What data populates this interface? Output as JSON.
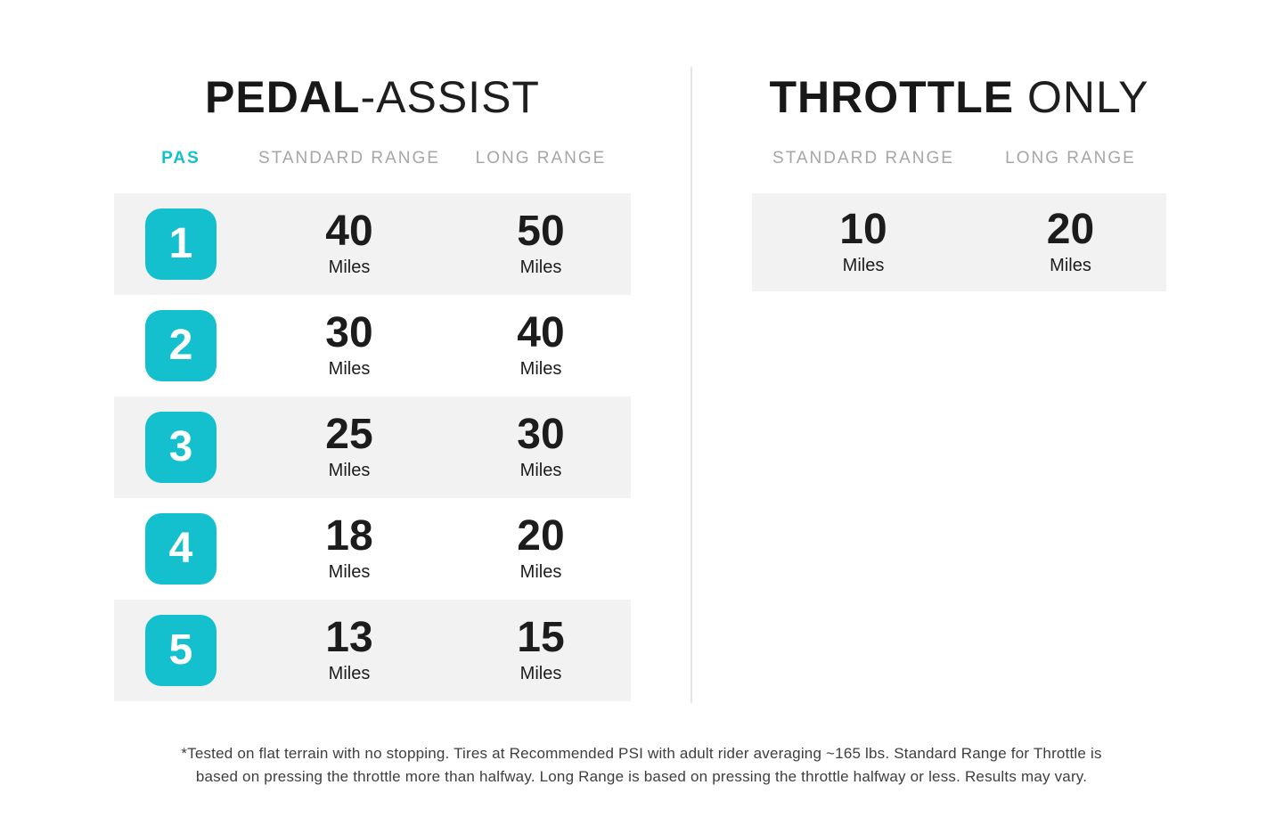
{
  "colors": {
    "accent_teal": "#14c0cd",
    "row_gray": "#f2f2f2",
    "header_gray": "#a6a6a6",
    "text_dark": "#1c1c1c",
    "divider_gray": "#e4e4e4",
    "footnote_gray": "#3e3e3e"
  },
  "pedal_assist": {
    "title_bold": "PEDAL",
    "title_light": "-ASSIST",
    "columns": [
      "PAS",
      "STANDARD RANGE",
      "LONG RANGE"
    ],
    "unit": "Miles",
    "rows": [
      {
        "pas": "1",
        "standard": "40",
        "long": "50"
      },
      {
        "pas": "2",
        "standard": "30",
        "long": "40"
      },
      {
        "pas": "3",
        "standard": "25",
        "long": "30"
      },
      {
        "pas": "4",
        "standard": "18",
        "long": "20"
      },
      {
        "pas": "5",
        "standard": "13",
        "long": "15"
      }
    ]
  },
  "throttle_only": {
    "title_bold": "THROTTLE",
    "title_light": " ONLY",
    "columns": [
      "STANDARD RANGE",
      "LONG RANGE"
    ],
    "unit": "Miles",
    "rows": [
      {
        "standard": "10",
        "long": "20"
      }
    ]
  },
  "footnote": {
    "line1": "*Tested on flat terrain with no stopping. Tires at Recommended PSI with adult rider averaging ~165 lbs. Standard Range for Throttle is",
    "line2": "based on pressing the throttle more than halfway. Long Range is based on pressing the throttle halfway or less. Results may vary."
  },
  "chart_data": {
    "type": "table",
    "tables": [
      {
        "title": "PEDAL-ASSIST",
        "columns": [
          "PAS",
          "STANDARD RANGE",
          "LONG RANGE"
        ],
        "unit": "Miles",
        "rows": [
          [
            1,
            40,
            50
          ],
          [
            2,
            30,
            40
          ],
          [
            3,
            25,
            30
          ],
          [
            4,
            18,
            20
          ],
          [
            5,
            13,
            15
          ]
        ]
      },
      {
        "title": "THROTTLE ONLY",
        "columns": [
          "STANDARD RANGE",
          "LONG RANGE"
        ],
        "unit": "Miles",
        "rows": [
          [
            10,
            20
          ]
        ]
      }
    ],
    "footnote": "*Tested on flat terrain with no stopping. Tires at Recommended PSI with adult rider averaging ~165 lbs. Standard Range for Throttle is based on pressing the throttle more than halfway. Long Range is based on pressing the throttle halfway or less. Results may vary."
  }
}
